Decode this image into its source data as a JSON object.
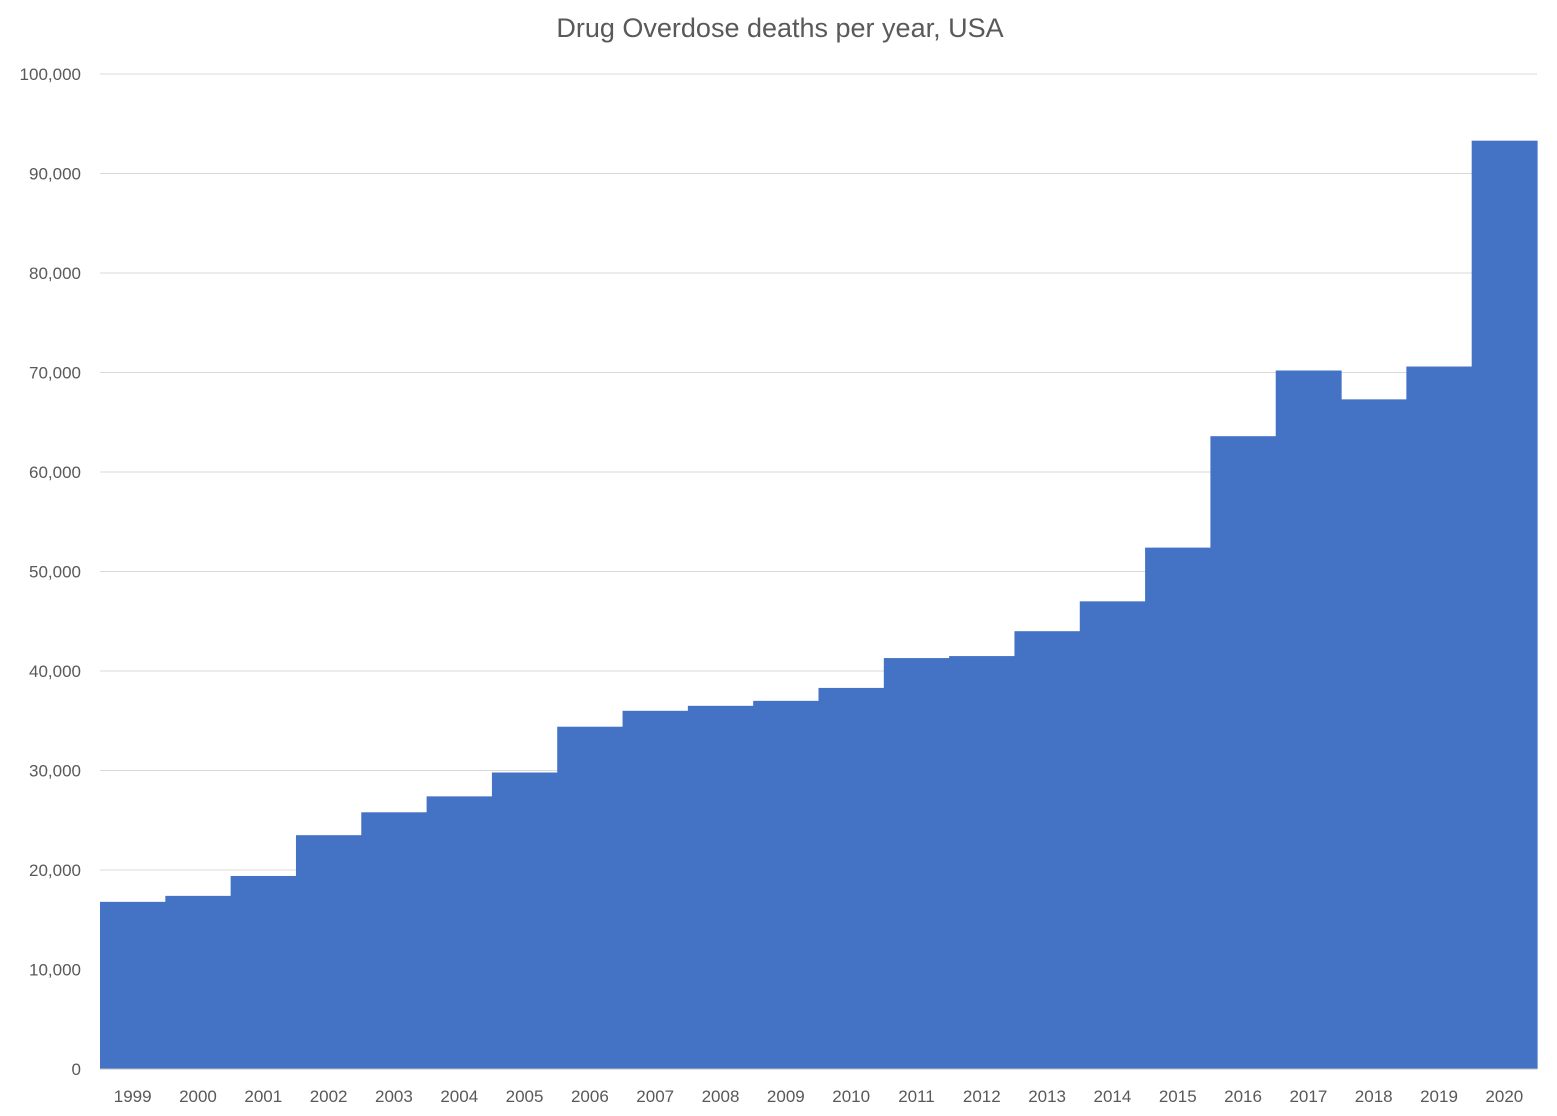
{
  "chart_data": {
    "type": "bar",
    "title": "Drug Overdose deaths per year, USA",
    "xlabel": "",
    "ylabel": "",
    "categories": [
      "1999",
      "2000",
      "2001",
      "2002",
      "2003",
      "2004",
      "2005",
      "2006",
      "2007",
      "2008",
      "2009",
      "2010",
      "2011",
      "2012",
      "2013",
      "2014",
      "2015",
      "2016",
      "2017",
      "2018",
      "2019",
      "2020"
    ],
    "values": [
      16800,
      17400,
      19400,
      23500,
      25800,
      27400,
      29800,
      34400,
      36000,
      36500,
      37000,
      38300,
      41300,
      41500,
      44000,
      47000,
      52400,
      63600,
      70200,
      67300,
      70600,
      93300
    ],
    "ylim": [
      0,
      100000
    ],
    "yticks": [
      0,
      10000,
      20000,
      30000,
      40000,
      50000,
      60000,
      70000,
      80000,
      90000,
      100000
    ],
    "ytick_labels": [
      "0",
      "10,000",
      "20,000",
      "30,000",
      "40,000",
      "50,000",
      "60,000",
      "70,000",
      "80,000",
      "90,000",
      "100,000"
    ],
    "grid": true,
    "legend": "none",
    "bar_gap": "none",
    "colors": {
      "bar": "#4472c4",
      "gridline": "#d9d9d9",
      "text": "#595959"
    }
  }
}
